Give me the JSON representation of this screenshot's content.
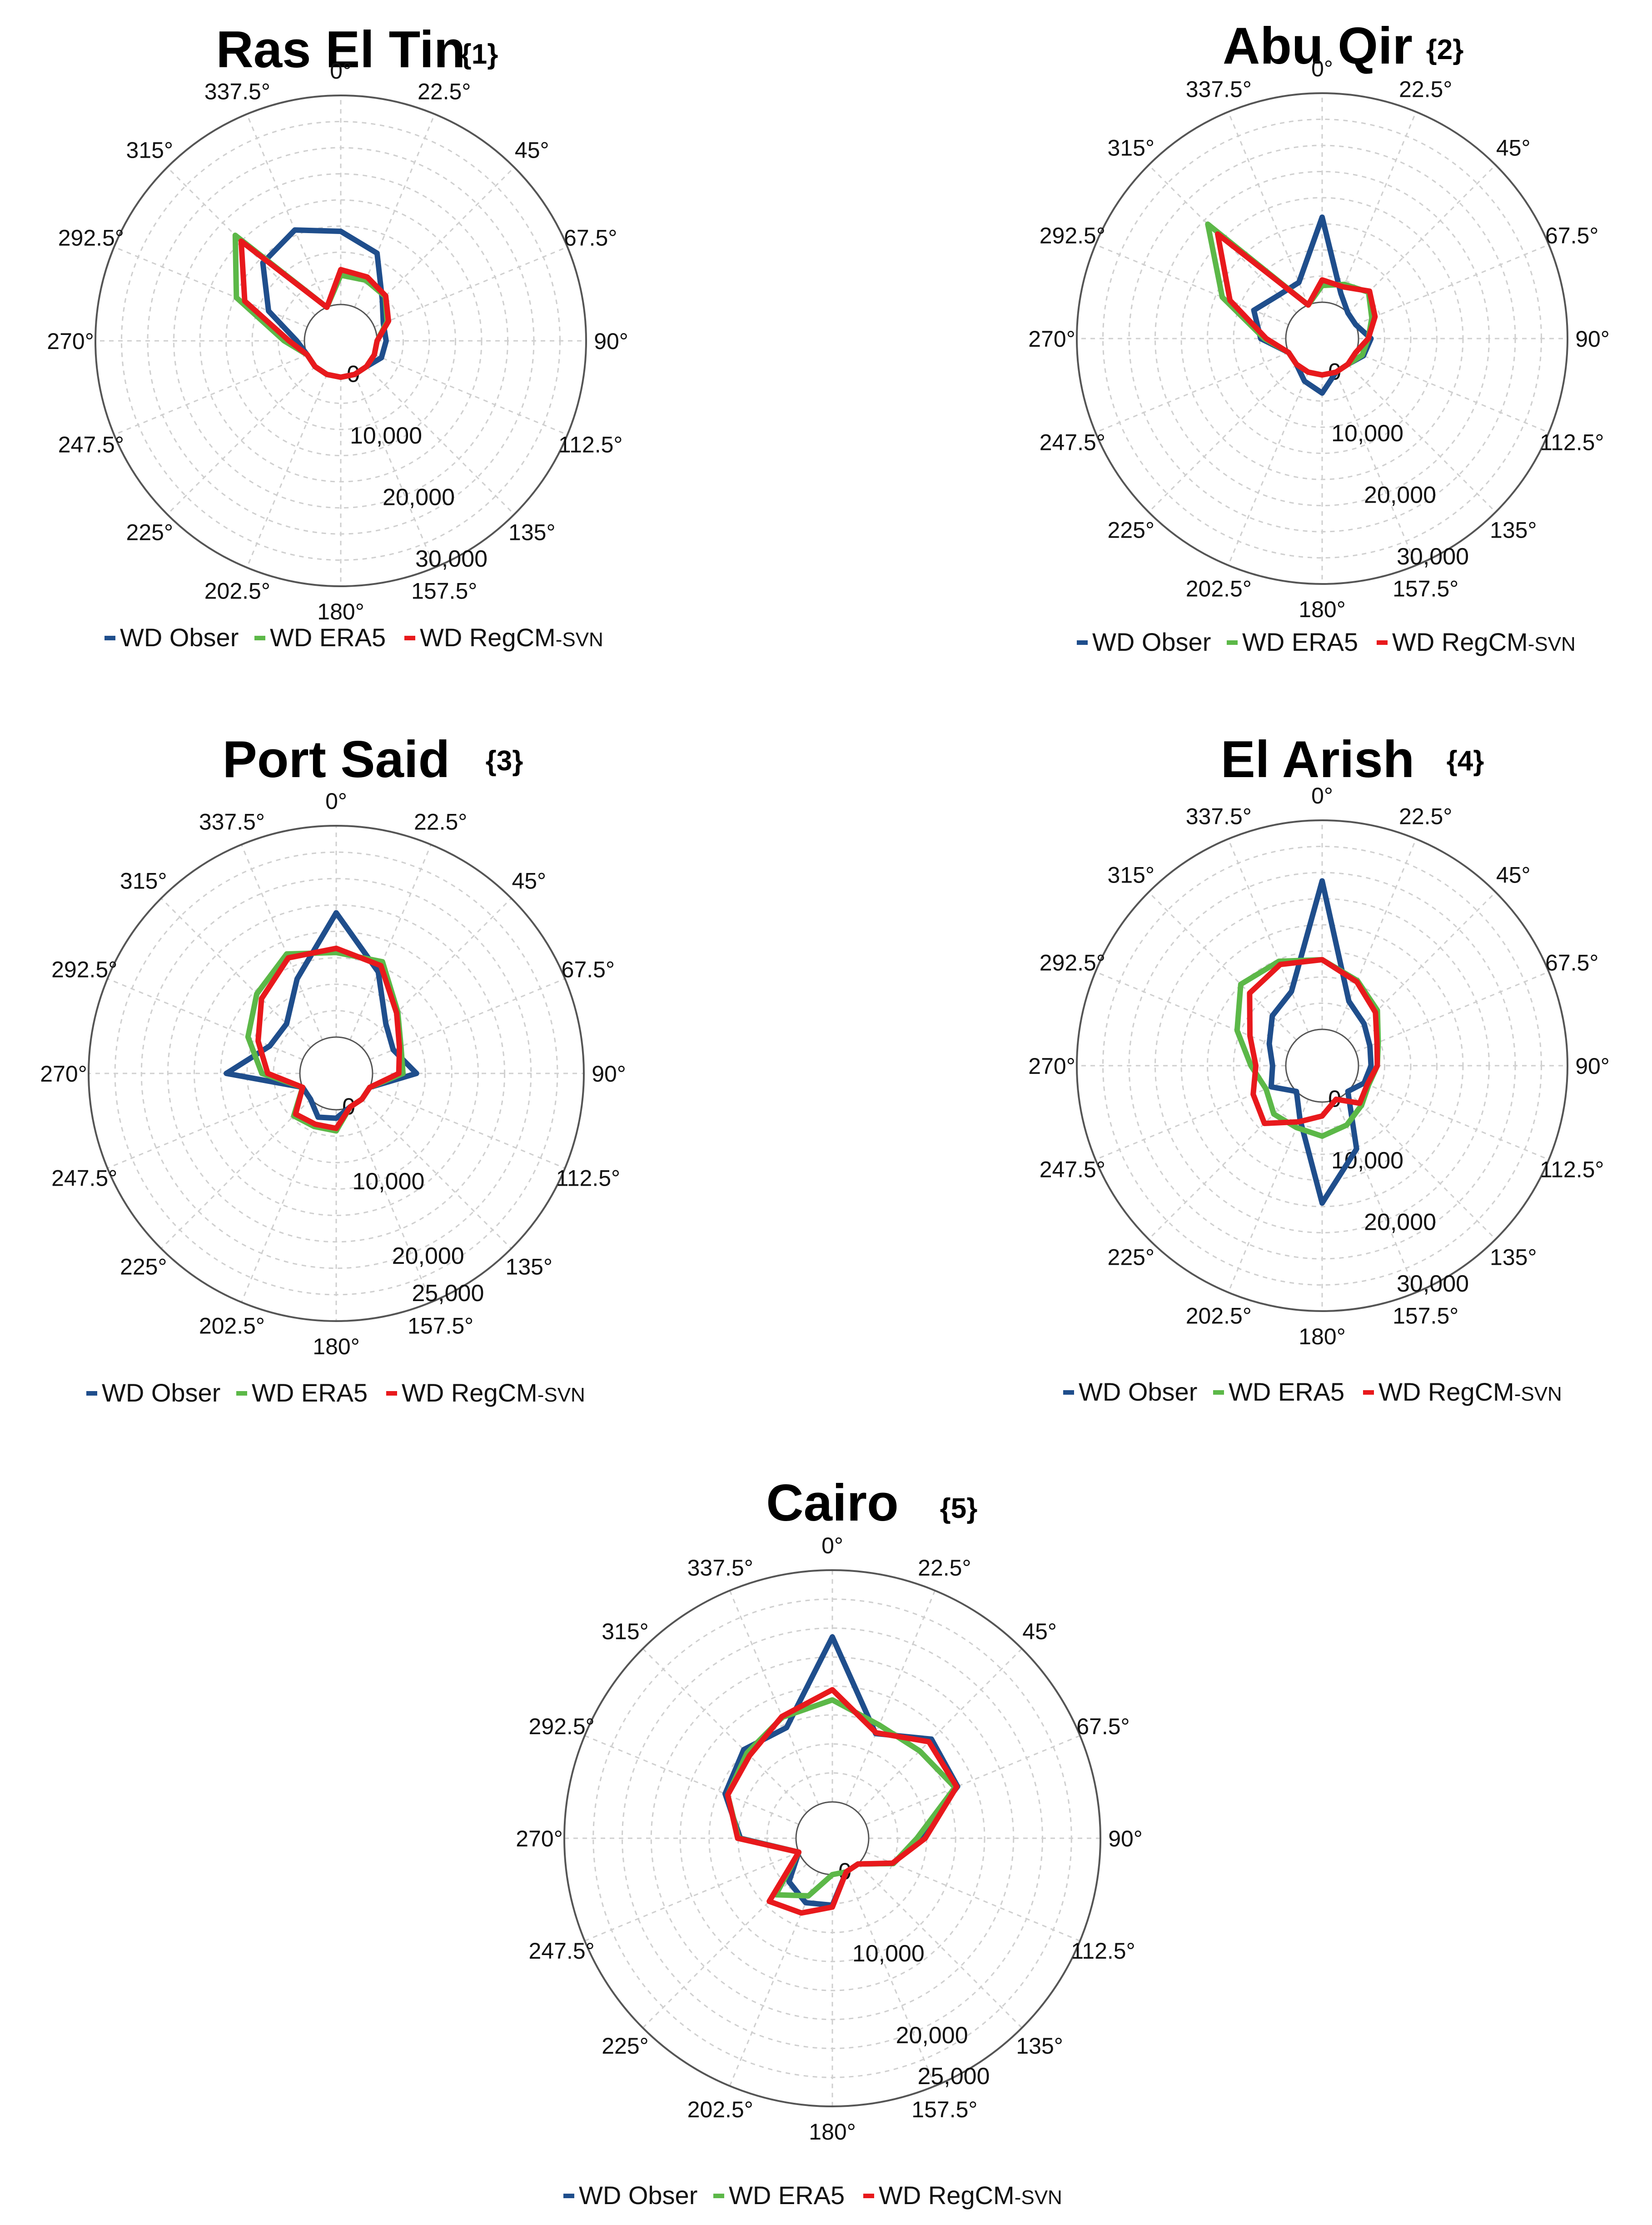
{
  "colors": {
    "obs": "#1f4e8c",
    "era5": "#5cb848",
    "regcm": "#e8191c"
  },
  "legend": {
    "obs": "WD Obser",
    "era5": "WD ERA5",
    "regcm_main": "WD RegCM",
    "regcm_suffix": "-SVN"
  },
  "chart_data": [
    {
      "type": "radar",
      "title": "Ras El Tin",
      "tag": "{1}",
      "directions": [
        "0°",
        "22.5°",
        "45°",
        "67.5°",
        "90°",
        "112.5°",
        "135°",
        "157.5°",
        "180°",
        "202.5°",
        "225°",
        "247.5°",
        "270°",
        "292.5°",
        "315°",
        "337.5°"
      ],
      "radial_ticks": [
        "0",
        "10,000",
        "20,000",
        "30,000"
      ],
      "rmax": 30000,
      "series": [
        {
          "name": "WD Obser",
          "values": [
            10500,
            8400,
            3200,
            1400,
            1300,
            1100,
            0,
            0,
            0,
            0,
            0,
            0,
            1100,
            6000,
            10600,
            12000
          ]
        },
        {
          "name": "WD ERA5",
          "values": [
            4200,
            4200,
            3800,
            2000,
            0,
            0,
            0,
            0,
            0,
            0,
            0,
            0,
            2900,
            11000,
            16200,
            0
          ]
        },
        {
          "name": "WD RegCM-SVN",
          "values": [
            5000,
            4700,
            3900,
            2200,
            0,
            0,
            0,
            0,
            0,
            0,
            0,
            0,
            2200,
            9700,
            15000,
            0
          ]
        }
      ]
    },
    {
      "type": "radar",
      "title": "Abu Qir",
      "tag": "{2}",
      "directions": [
        "0°",
        "22.5°",
        "45°",
        "67.5°",
        "90°",
        "112.5°",
        "135°",
        "157.5°",
        "180°",
        "202.5°",
        "225°",
        "247.5°",
        "270°",
        "292.5°",
        "315°",
        "337.5°"
      ],
      "radial_ticks": [
        "0",
        "10,000",
        "20,000",
        "30,000"
      ],
      "rmax": 30000,
      "series": [
        {
          "name": "WD Obser",
          "values": [
            12200,
            1800,
            0,
            0,
            1800,
            1200,
            0,
            0,
            2600,
            1400,
            0,
            0,
            3600,
            5400,
            3600,
            3500
          ]
        },
        {
          "name": "WD ERA5",
          "values": [
            2400,
            3200,
            4200,
            2500,
            1400,
            1000,
            0,
            0,
            0,
            0,
            0,
            0,
            3100,
            10300,
            18000,
            0
          ]
        },
        {
          "name": "WD RegCM-SVN",
          "values": [
            3200,
            2800,
            4400,
            3000,
            1400,
            0,
            0,
            0,
            0,
            0,
            0,
            0,
            2800,
            9100,
            16000,
            0
          ]
        }
      ]
    },
    {
      "type": "radar",
      "title": "Port Said",
      "tag": "{3}",
      "directions": [
        "0°",
        "22.5°",
        "45°",
        "67.5°",
        "90°",
        "112.5°",
        "135°",
        "157.5°",
        "180°",
        "202.5°",
        "225°",
        "247.5°",
        "270°",
        "292.5°",
        "315°",
        "337.5°"
      ],
      "radial_ticks": [
        "0",
        "10,000",
        "20,000",
        "25,000"
      ],
      "rmax": 25000,
      "series": [
        {
          "name": "WD Obser",
          "values": [
            14700,
            8700,
            4000,
            3000,
            5200,
            0,
            0,
            0,
            1000,
            1300,
            0,
            0,
            8700,
            4200,
            4000,
            7800
          ]
        },
        {
          "name": "WD ERA5",
          "values": [
            10000,
            10000,
            6000,
            4000,
            3600,
            0,
            0,
            0,
            2500,
            2500,
            2800,
            0,
            4500,
            7000,
            9000,
            11000
          ]
        },
        {
          "name": "WD RegCM-SVN",
          "values": [
            10500,
            9500,
            5800,
            3800,
            3100,
            0,
            0,
            0,
            2200,
            2200,
            2500,
            0,
            3800,
            5700,
            8200,
            10500
          ]
        }
      ]
    },
    {
      "type": "radar",
      "title": "El Arish",
      "tag": "{4}",
      "directions": [
        "0°",
        "22.5°",
        "45°",
        "67.5°",
        "90°",
        "112.5°",
        "135°",
        "157.5°",
        "180°",
        "202.5°",
        "225°",
        "247.5°",
        "270°",
        "292.5°",
        "315°",
        "337.5°"
      ],
      "radial_ticks": [
        "0",
        "10,000",
        "20,000",
        "30,000"
      ],
      "rmax": 30000,
      "series": [
        {
          "name": "WD Obser",
          "values": [
            21300,
            4800,
            3300,
            2200,
            1800,
            1300,
            0,
            7700,
            14500,
            3100,
            0,
            2700,
            1900,
            3000,
            4900,
            6300
          ]
        },
        {
          "name": "WD ERA5",
          "values": [
            10000,
            8000,
            6000,
            3500,
            2700,
            2000,
            2800,
            4000,
            4900,
            4400,
            4600,
            3500,
            5000,
            8000,
            11300,
            11000
          ]
        },
        {
          "name": "WD RegCM-SVN",
          "values": [
            10000,
            7800,
            5600,
            3300,
            2700,
            1800,
            2400,
            0,
            2000,
            3500,
            6500,
            5500,
            4300,
            6000,
            9500,
            10500
          ]
        }
      ]
    },
    {
      "type": "radar",
      "title": "Cairo",
      "tag": "{5}",
      "directions": [
        "0°",
        "22.5°",
        "45°",
        "67.5°",
        "90°",
        "112.5°",
        "135°",
        "157.5°",
        "180°",
        "202.5°",
        "225°",
        "247.5°",
        "270°",
        "292.5°",
        "315°",
        "337.5°"
      ],
      "radial_ticks": [
        "0",
        "10,000",
        "20,000",
        "25,000"
      ],
      "rmax": 25000,
      "series": [
        {
          "name": "WD Obser",
          "values": [
            17800,
            8300,
            11200,
            10700,
            5400,
            3200,
            0,
            0,
            3300,
            3600,
            2700,
            0,
            6000,
            8600,
            9600,
            9000
          ]
        },
        {
          "name": "WD ERA5",
          "values": [
            11000,
            9300,
            9400,
            10400,
            5200,
            3200,
            0,
            0,
            0,
            2800,
            4700,
            0,
            6200,
            8300,
            9100,
            10200
          ]
        },
        {
          "name": "WD RegCM-SVN",
          "values": [
            12100,
            8400,
            10800,
            10600,
            6100,
            3100,
            0,
            0,
            3500,
            4800,
            5700,
            0,
            6300,
            8300,
            8700,
            10300
          ]
        }
      ]
    }
  ]
}
